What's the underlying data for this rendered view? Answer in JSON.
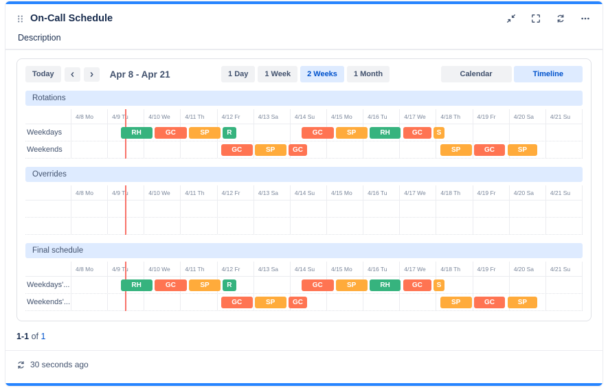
{
  "header": {
    "title": "On-Call Schedule",
    "icons": {
      "drag_handle": "drag-handle-icon",
      "collapse": "collapse-icon",
      "fullscreen": "fullscreen-icon",
      "refresh": "refresh-icon",
      "more": "more-icon"
    }
  },
  "tabs": {
    "description": "Description"
  },
  "toolbar": {
    "today": "Today",
    "date_range": "Apr 8 - Apr 21",
    "zoom_options": [
      {
        "label": "1 Day",
        "selected": false
      },
      {
        "label": "1 Week",
        "selected": false
      },
      {
        "label": "2 Weeks",
        "selected": true
      },
      {
        "label": "1 Month",
        "selected": false
      }
    ],
    "view_options": [
      {
        "label": "Calendar",
        "selected": false
      },
      {
        "label": "Timeline",
        "selected": true
      }
    ]
  },
  "colors": {
    "accent": "#2684FF",
    "selected_bg": "#DEEBFF",
    "selected_text": "#0052CC",
    "now_line": "#F87168"
  },
  "timeline": {
    "days": [
      "4/8 Mo",
      "4/9 Tu",
      "4/10 We",
      "4/11 Th",
      "4/12 Fr",
      "4/13 Sa",
      "4/14 Su",
      "4/15 Mo",
      "4/16 Tu",
      "4/17 We",
      "4/18 Th",
      "4/19 Fr",
      "4/20 Sa",
      "4/21 Su"
    ],
    "now_day": 1.48,
    "colors": {
      "green": "#36B37E",
      "orange": "#FFAB3B",
      "red": "#FF7452"
    },
    "sections": [
      {
        "name": "Rotations",
        "rows": [
          {
            "label": "Weekdays",
            "bars": [
              {
                "label": "RH",
                "color": "green",
                "start": 1.35,
                "end": 2.25
              },
              {
                "label": "GC",
                "color": "red",
                "start": 2.27,
                "end": 3.2
              },
              {
                "label": "SP",
                "color": "orange",
                "start": 3.22,
                "end": 4.12
              },
              {
                "label": "R",
                "color": "green",
                "start": 4.14,
                "end": 4.55
              },
              {
                "label": "GC",
                "color": "red",
                "start": 6.3,
                "end": 7.22
              },
              {
                "label": "SP",
                "color": "orange",
                "start": 7.24,
                "end": 8.14
              },
              {
                "label": "RH",
                "color": "green",
                "start": 8.16,
                "end": 9.06
              },
              {
                "label": "GC",
                "color": "red",
                "start": 9.08,
                "end": 9.9
              },
              {
                "label": "S",
                "color": "orange",
                "start": 9.92,
                "end": 10.25
              }
            ]
          },
          {
            "label": "Weekends",
            "bars": [
              {
                "label": "GC",
                "color": "red",
                "start": 4.1,
                "end": 5.0
              },
              {
                "label": "SP",
                "color": "orange",
                "start": 5.02,
                "end": 5.92
              },
              {
                "label": "GC",
                "color": "red",
                "start": 5.94,
                "end": 6.5
              },
              {
                "label": "SP",
                "color": "orange",
                "start": 10.1,
                "end": 11.0
              },
              {
                "label": "GC",
                "color": "red",
                "start": 11.02,
                "end": 11.92
              },
              {
                "label": "SP",
                "color": "orange",
                "start": 11.94,
                "end": 12.8
              }
            ]
          }
        ]
      },
      {
        "name": "Overrides",
        "rows": [
          {
            "label": "",
            "bars": []
          },
          {
            "label": "",
            "bars": []
          }
        ]
      },
      {
        "name": "Final schedule",
        "rows": [
          {
            "label": "Weekdays'...",
            "bars": [
              {
                "label": "RH",
                "color": "green",
                "start": 1.35,
                "end": 2.25
              },
              {
                "label": "GC",
                "color": "red",
                "start": 2.27,
                "end": 3.2
              },
              {
                "label": "SP",
                "color": "orange",
                "start": 3.22,
                "end": 4.12
              },
              {
                "label": "R",
                "color": "green",
                "start": 4.14,
                "end": 4.55
              },
              {
                "label": "GC",
                "color": "red",
                "start": 6.3,
                "end": 7.22
              },
              {
                "label": "SP",
                "color": "orange",
                "start": 7.24,
                "end": 8.14
              },
              {
                "label": "RH",
                "color": "green",
                "start": 8.16,
                "end": 9.06
              },
              {
                "label": "GC",
                "color": "red",
                "start": 9.08,
                "end": 9.9
              },
              {
                "label": "S",
                "color": "orange",
                "start": 9.92,
                "end": 10.25
              }
            ]
          },
          {
            "label": "Weekends'...",
            "bars": [
              {
                "label": "GC",
                "color": "red",
                "start": 4.1,
                "end": 5.0
              },
              {
                "label": "SP",
                "color": "orange",
                "start": 5.02,
                "end": 5.92
              },
              {
                "label": "GC",
                "color": "red",
                "start": 5.94,
                "end": 6.5
              },
              {
                "label": "SP",
                "color": "orange",
                "start": 10.1,
                "end": 11.0
              },
              {
                "label": "GC",
                "color": "red",
                "start": 11.02,
                "end": 11.92
              },
              {
                "label": "SP",
                "color": "orange",
                "start": 11.94,
                "end": 12.8
              }
            ]
          }
        ]
      }
    ]
  },
  "footer": {
    "pagination": {
      "range": "1-1",
      "of": "of",
      "total": "1"
    },
    "refreshed": "30 seconds ago"
  }
}
